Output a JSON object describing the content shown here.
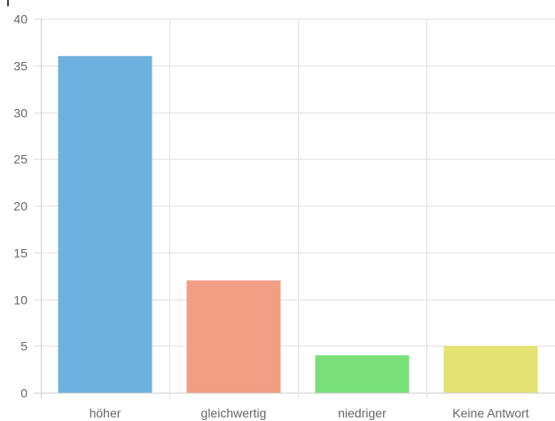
{
  "chart_data": {
    "type": "bar",
    "categories": [
      "höher",
      "gleichwertig",
      "niedriger",
      "Keine Antwort"
    ],
    "values": [
      36,
      12,
      4,
      5
    ],
    "colors": [
      "#6fb1de",
      "#f09e84",
      "#79e07a",
      "#e3e273"
    ],
    "ylim": [
      0,
      40
    ],
    "yticks": [
      "0",
      "5",
      "10",
      "15",
      "20",
      "25",
      "30",
      "35",
      "40"
    ],
    "grid": true,
    "legend": "none"
  }
}
